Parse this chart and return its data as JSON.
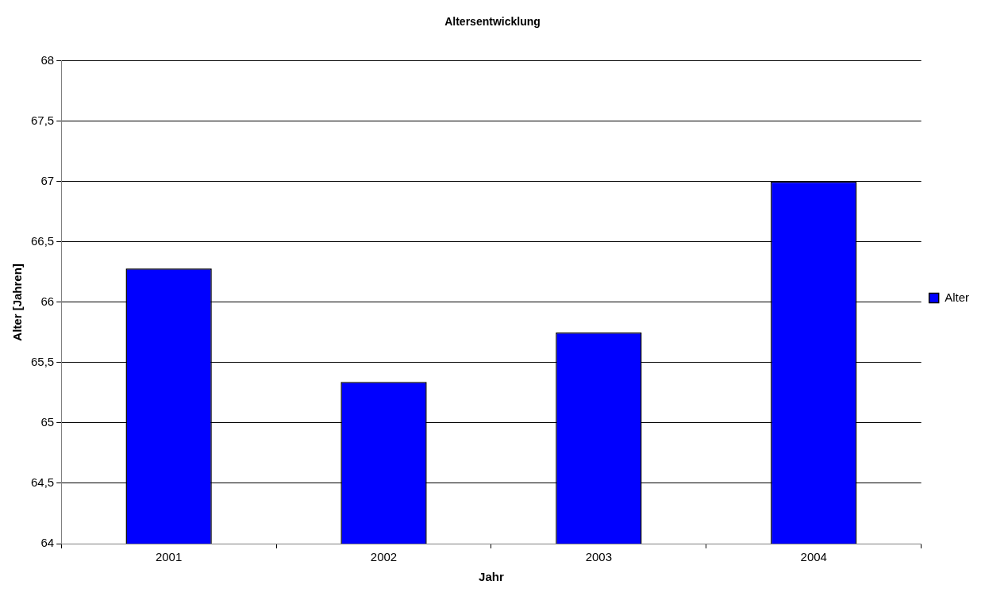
{
  "chart_data": {
    "type": "bar",
    "title": "Altersentwicklung",
    "xlabel": "Jahr",
    "ylabel": "Alter [Jahren]",
    "categories": [
      "2001",
      "2002",
      "2003",
      "2004"
    ],
    "series": [
      {
        "name": "Alter",
        "color": "#0000ff",
        "values": [
          66.28,
          65.34,
          65.75,
          67.0
        ]
      }
    ],
    "ylim": [
      64,
      68
    ],
    "yticks": [
      64,
      {
        "value": 64.5,
        "label": "64,5"
      },
      65,
      {
        "value": 65.5,
        "label": "65,5"
      },
      66,
      {
        "value": 66.5,
        "label": "66,5"
      },
      67,
      {
        "value": 67.5,
        "label": "67,5"
      },
      68
    ],
    "grid": "y",
    "legend": "right"
  }
}
